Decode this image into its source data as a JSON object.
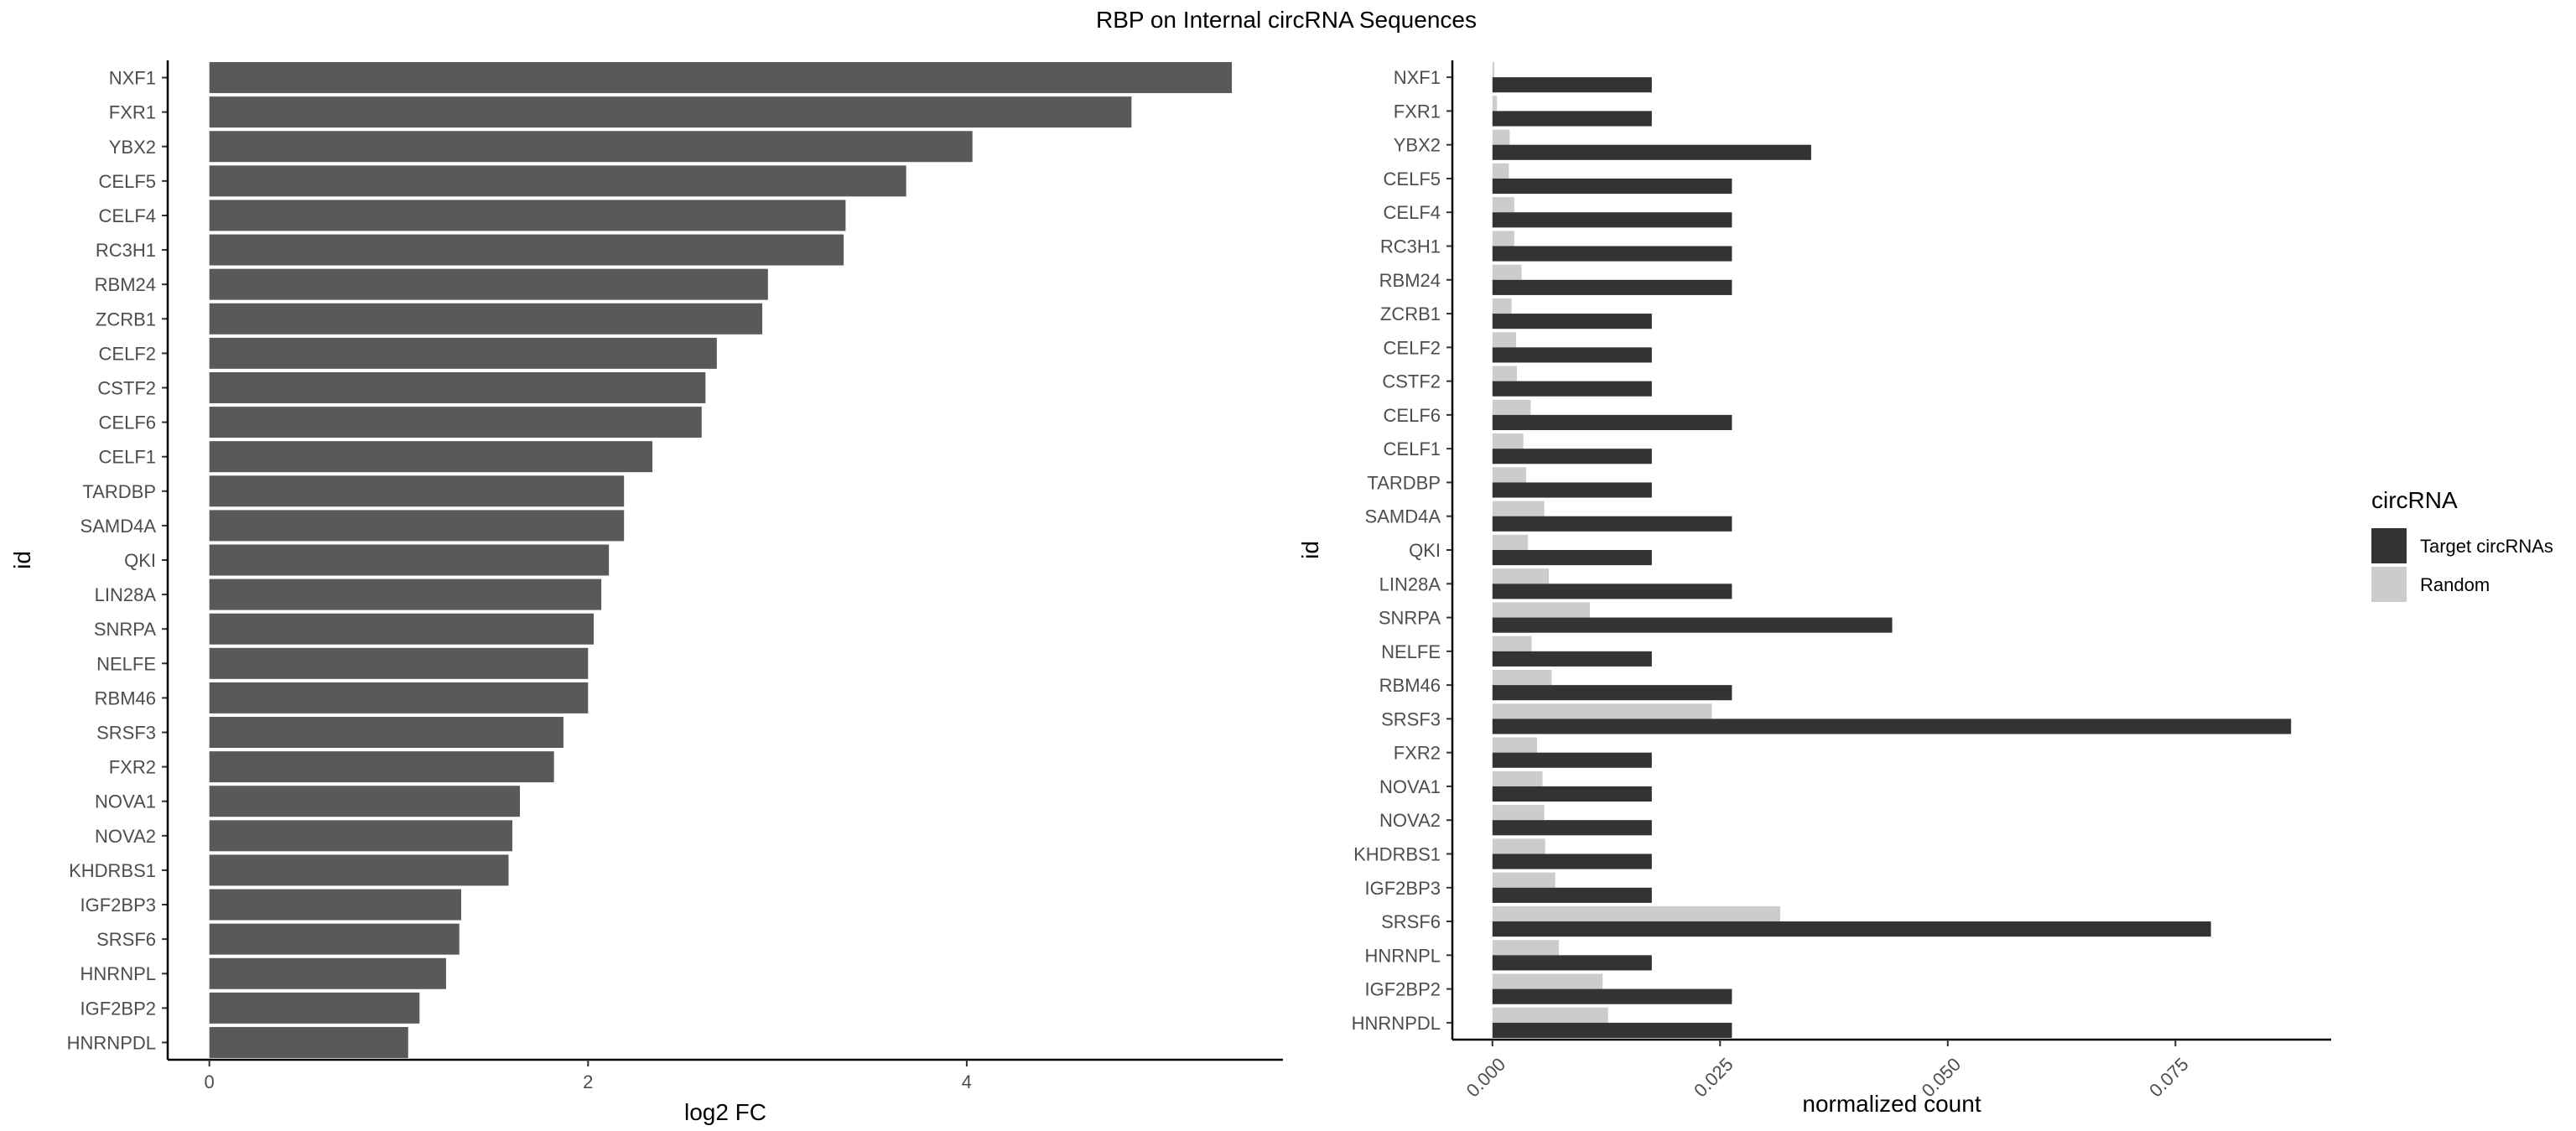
{
  "title": "RBP on Internal circRNA Sequences",
  "chart_data": [
    {
      "type": "bar",
      "orientation": "horizontal",
      "categories": [
        "NXF1",
        "FXR1",
        "YBX2",
        "CELF5",
        "CELF4",
        "RC3H1",
        "RBM24",
        "ZCRB1",
        "CELF2",
        "CSTF2",
        "CELF6",
        "CELF1",
        "TARDBP",
        "SAMD4A",
        "QKI",
        "LIN28A",
        "SNRPA",
        "NELFE",
        "RBM46",
        "SRSF3",
        "FXR2",
        "NOVA1",
        "NOVA2",
        "KHDRBS1",
        "IGF2BP3",
        "SRSF6",
        "HNRNPL",
        "IGF2BP2",
        "HNRNPDL"
      ],
      "values": [
        5.4,
        4.87,
        4.03,
        3.68,
        3.36,
        3.35,
        2.95,
        2.92,
        2.68,
        2.62,
        2.6,
        2.34,
        2.19,
        2.19,
        2.11,
        2.07,
        2.03,
        2.0,
        2.0,
        1.87,
        1.82,
        1.64,
        1.6,
        1.58,
        1.33,
        1.32,
        1.25,
        1.11,
        1.05
      ],
      "xlabel": "log2 FC",
      "ylabel": "id",
      "xticks": [
        0,
        2,
        4
      ],
      "xlim": [
        -0.22,
        5.67
      ],
      "color": "#595959"
    },
    {
      "type": "bar",
      "orientation": "horizontal",
      "grouped": true,
      "categories": [
        "NXF1",
        "FXR1",
        "YBX2",
        "CELF5",
        "CELF4",
        "RC3H1",
        "RBM24",
        "ZCRB1",
        "CELF2",
        "CSTF2",
        "CELF6",
        "CELF1",
        "TARDBP",
        "SAMD4A",
        "QKI",
        "LIN28A",
        "SNRPA",
        "NELFE",
        "RBM46",
        "SRSF3",
        "FXR2",
        "NOVA1",
        "NOVA2",
        "KHDRBS1",
        "IGF2BP3",
        "SRSF6",
        "HNRNPL",
        "IGF2BP2",
        "HNRNPDL"
      ],
      "series": [
        {
          "name": "Target circRNAs",
          "color": "#333333",
          "values": [
            0.0175,
            0.0175,
            0.035,
            0.0263,
            0.0263,
            0.0263,
            0.0263,
            0.0175,
            0.0175,
            0.0175,
            0.0263,
            0.0175,
            0.0175,
            0.0263,
            0.0175,
            0.0263,
            0.0439,
            0.0175,
            0.0263,
            0.0877,
            0.0175,
            0.0175,
            0.0175,
            0.0175,
            0.0175,
            0.0789,
            0.0175,
            0.0263,
            0.0263
          ]
        },
        {
          "name": "Random",
          "color": "#cccccc",
          "values": [
            0.0002,
            0.0005,
            0.0019,
            0.0018,
            0.0024,
            0.0024,
            0.0032,
            0.0021,
            0.0026,
            0.0027,
            0.0042,
            0.0034,
            0.0037,
            0.0057,
            0.0039,
            0.0062,
            0.0107,
            0.0043,
            0.0065,
            0.0241,
            0.0049,
            0.0055,
            0.0057,
            0.0058,
            0.0069,
            0.0316,
            0.0073,
            0.0121,
            0.0127
          ]
        }
      ],
      "xlabel": "normalized count",
      "ylabel": "id",
      "xticks": [
        0.0,
        0.025,
        0.05,
        0.075
      ],
      "xtick_labels": [
        "0.000",
        "0.025",
        "0.050",
        "0.075"
      ],
      "xlim": [
        -0.0044,
        0.0921
      ],
      "legend": {
        "title": "circRNA",
        "position": "right",
        "entries": [
          "Target circRNAs",
          "Random"
        ]
      }
    }
  ]
}
